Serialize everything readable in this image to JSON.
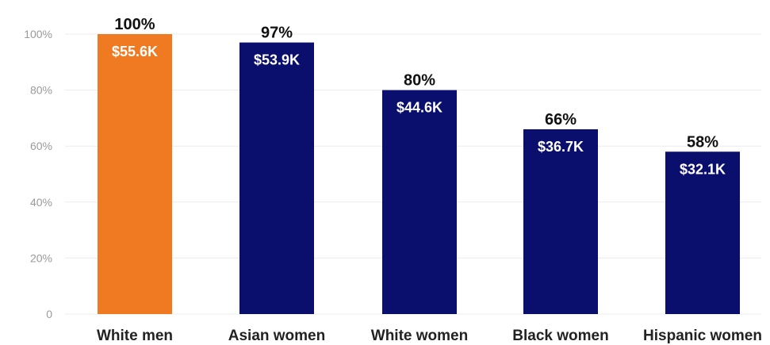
{
  "chart_data": {
    "type": "bar",
    "categories": [
      "White men",
      "Asian women",
      "White women",
      "Black women",
      "Hispanic women"
    ],
    "values": [
      100,
      97,
      80,
      66,
      58
    ],
    "percent_labels": [
      "100%",
      "97%",
      "80%",
      "66%",
      "58%"
    ],
    "value_labels": [
      "$55.6K",
      "$53.9K",
      "$44.6K",
      "$36.7K",
      "$32.1K"
    ],
    "bar_colors": [
      "#f07a22",
      "#0a0f6e",
      "#0a0f6e",
      "#0a0f6e",
      "#0a0f6e"
    ],
    "yticks": [
      0,
      20,
      40,
      60,
      80,
      100
    ],
    "ytick_labels": [
      "0",
      "20%",
      "40%",
      "60%",
      "80%",
      "100%"
    ],
    "ylim": [
      0,
      100
    ],
    "grid": true
  }
}
